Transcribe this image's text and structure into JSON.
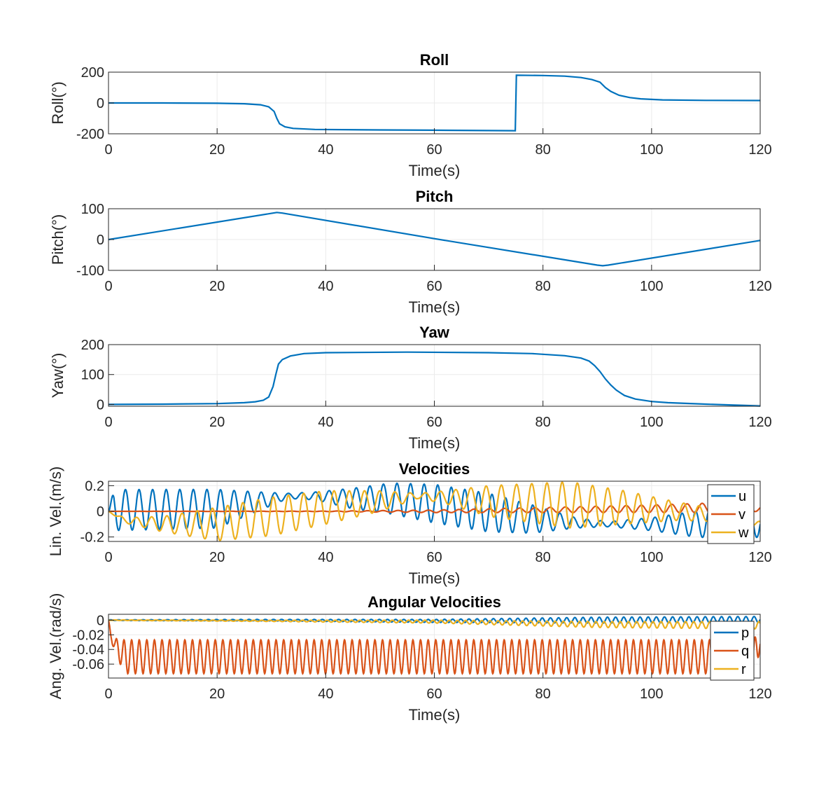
{
  "chart_data": [
    {
      "type": "line",
      "title": "Roll",
      "xlabel": "Time(s)",
      "ylabel": "Roll(°)",
      "xlim": [
        0,
        120
      ],
      "ylim": [
        -200,
        200
      ],
      "xticks": [
        0,
        20,
        40,
        60,
        80,
        100,
        120
      ],
      "yticks": [
        -200,
        0,
        200
      ],
      "grid": true,
      "series": [
        {
          "color": "#0072BD",
          "x": [
            0,
            10,
            20,
            25,
            28,
            29.5,
            30.5,
            31,
            31.5,
            32.5,
            34,
            38,
            50,
            60,
            74.9,
            75,
            75.1,
            80,
            84,
            87,
            89,
            90.5,
            91.5,
            92.5,
            94,
            96,
            98,
            102,
            110,
            120
          ],
          "y": [
            0,
            0,
            -2,
            -5,
            -12,
            -25,
            -55,
            -100,
            -135,
            -155,
            -165,
            -172,
            -175,
            -177,
            -180,
            0,
            180,
            178,
            174,
            165,
            152,
            135,
            100,
            75,
            50,
            35,
            27,
            20,
            17,
            16
          ]
        }
      ]
    },
    {
      "type": "line",
      "title": "Pitch",
      "xlabel": "Time(s)",
      "ylabel": "Pitch(°)",
      "xlim": [
        0,
        120
      ],
      "ylim": [
        -100,
        100
      ],
      "xticks": [
        0,
        20,
        40,
        60,
        80,
        100,
        120
      ],
      "yticks": [
        -100,
        0,
        100
      ],
      "grid": true,
      "series": [
        {
          "color": "#0072BD",
          "x": [
            0,
            30,
            31,
            32,
            60,
            90,
            91,
            92,
            120
          ],
          "y": [
            0,
            85,
            88,
            86,
            3,
            -83,
            -85,
            -83,
            -3
          ]
        }
      ]
    },
    {
      "type": "line",
      "title": "Yaw",
      "xlabel": "Time(s)",
      "ylabel": "Yaw(°)",
      "xlim": [
        0,
        120
      ],
      "ylim": [
        -6,
        200
      ],
      "xticks": [
        0,
        20,
        40,
        60,
        80,
        100,
        120
      ],
      "yticks": [
        0,
        100,
        200
      ],
      "grid": true,
      "series": [
        {
          "color": "#0072BD",
          "x": [
            0,
            10,
            20,
            25,
            27,
            28.5,
            29.5,
            30.3,
            30.8,
            31.3,
            32,
            33.5,
            36,
            40,
            55,
            70,
            78,
            84,
            87,
            88.5,
            89.5,
            90.5,
            91.5,
            92.5,
            93.5,
            95,
            97,
            100,
            103,
            110,
            120
          ],
          "y": [
            0,
            1,
            3,
            6,
            9,
            14,
            25,
            60,
            100,
            135,
            150,
            162,
            170,
            173,
            175,
            173,
            170,
            163,
            155,
            145,
            130,
            110,
            85,
            65,
            48,
            30,
            18,
            10,
            6,
            1,
            -5
          ]
        }
      ]
    },
    {
      "type": "line",
      "title": "Velocities",
      "xlabel": "Time(s)",
      "ylabel": "Lin. Vel.(m/s)",
      "xlim": [
        0,
        120
      ],
      "ylim": [
        -0.235,
        0.235
      ],
      "xticks": [
        0,
        20,
        40,
        60,
        80,
        100,
        120
      ],
      "yticks": [
        -0.2,
        0,
        0.2
      ],
      "ytick_labels": [
        "-0.2",
        "0",
        "0.2"
      ],
      "grid": true,
      "legend": "top-right",
      "series": [
        {
          "name": "u",
          "color": "#0072BD",
          "period": 2.5,
          "knots": [
            0,
            1,
            20,
            28,
            33,
            38,
            45,
            52,
            60,
            70,
            78,
            86,
            92,
            100,
            108,
            116,
            120
          ],
          "center": [
            0,
            0.01,
            0.02,
            0.08,
            0.12,
            0.12,
            0.1,
            0.1,
            0.06,
            -0.01,
            -0.06,
            -0.09,
            -0.1,
            -0.1,
            -0.1,
            -0.1,
            -0.1
          ],
          "amplitude": [
            0,
            0.16,
            0.15,
            0.07,
            0.02,
            0.03,
            0.08,
            0.12,
            0.15,
            0.15,
            0.11,
            0.04,
            0.02,
            0.05,
            0.1,
            0.12,
            0.1
          ]
        },
        {
          "name": "v",
          "color": "#D95319",
          "period": 2.8,
          "knots": [
            0,
            40,
            60,
            80,
            100,
            115,
            120
          ],
          "center": [
            0,
            0,
            0,
            0.01,
            0.02,
            0.03,
            0.02
          ],
          "amplitude": [
            0,
            0.002,
            0.01,
            0.02,
            0.03,
            0.04,
            0.02
          ]
        },
        {
          "name": "w",
          "color": "#EDB120",
          "period": 2.8,
          "knots": [
            0,
            3,
            10,
            20,
            30,
            40,
            50,
            57,
            62,
            70,
            85,
            95,
            105,
            112,
            120
          ],
          "center": [
            0,
            -0.07,
            -0.1,
            -0.1,
            -0.04,
            0.03,
            0.08,
            0.12,
            0.11,
            0.08,
            0.05,
            0.03,
            0.0,
            -0.03,
            -0.1
          ],
          "amplitude": [
            0,
            0.02,
            0.06,
            0.13,
            0.15,
            0.13,
            0.08,
            0.02,
            0.05,
            0.12,
            0.18,
            0.13,
            0.07,
            0.05,
            0.02
          ]
        }
      ]
    },
    {
      "type": "line",
      "title": "Angular Velocities",
      "xlabel": "Time(s)",
      "ylabel": "Ang. Vel.(rad/s)",
      "xlim": [
        0,
        120
      ],
      "ylim": [
        -0.079,
        0.008
      ],
      "xticks": [
        0,
        20,
        40,
        60,
        80,
        100,
        120
      ],
      "yticks": [
        -0.06,
        -0.04,
        -0.02,
        0
      ],
      "ytick_labels": [
        "-0.06",
        "-0.04",
        "-0.02",
        "0"
      ],
      "grid": true,
      "legend": "right",
      "series": [
        {
          "name": "p",
          "color": "#0072BD",
          "period": 1.5,
          "knots": [
            0,
            30,
            60,
            90,
            120
          ],
          "center": [
            0,
            0,
            -0.001,
            0.0,
            0.001
          ],
          "amplitude": [
            0.0005,
            0.001,
            0.002,
            0.004,
            0.004
          ]
        },
        {
          "name": "q",
          "color": "#D95319",
          "period": 1.4,
          "knots": [
            0,
            0.4,
            1.2,
            3,
            118.5,
            119.5,
            120
          ],
          "center": [
            0,
            -0.02,
            -0.035,
            -0.05,
            -0.05,
            -0.04,
            -0.03
          ],
          "amplitude": [
            0,
            0.005,
            0.01,
            0.023,
            0.023,
            0.02,
            0.005
          ]
        },
        {
          "name": "r",
          "color": "#EDB120",
          "period": 1.5,
          "knots": [
            0,
            30,
            60,
            90,
            120
          ],
          "center": [
            0,
            -0.001,
            -0.002,
            -0.006,
            -0.007
          ],
          "amplitude": [
            0.0003,
            0.0008,
            0.002,
            0.004,
            0.005
          ]
        }
      ]
    }
  ]
}
